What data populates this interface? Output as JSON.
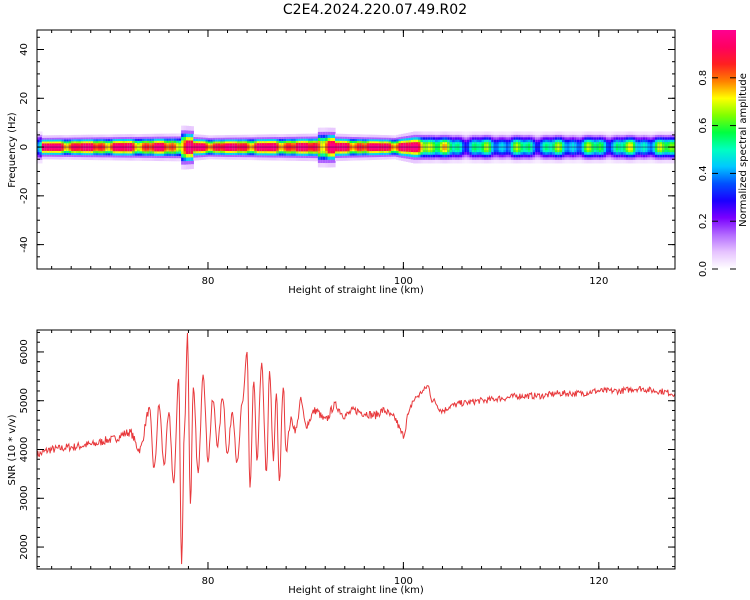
{
  "title": "C2E4.2024.220.07.49.R02",
  "colors": {
    "snr_line": "#e8393c",
    "colormap": [
      "#ffffff",
      "#e6c3ff",
      "#b36bff",
      "#7a00ff",
      "#1a00ff",
      "#0050ff",
      "#00c8ff",
      "#00ffc0",
      "#00ff40",
      "#80ff00",
      "#ffff00",
      "#ff8000",
      "#ff2020",
      "#ff0060",
      "#ff0090"
    ]
  },
  "chart_data": [
    {
      "type": "heatmap",
      "title": "",
      "xlabel": "Height of straight line (km)",
      "ylabel": "Frequency (Hz)",
      "xlim": [
        62.5,
        127.8
      ],
      "ylim": [
        -50,
        48
      ],
      "x_ticks": [
        80,
        100,
        120
      ],
      "y_ticks": [
        40,
        20,
        0,
        -20,
        -40
      ],
      "colorbar": {
        "label": "Normalized spectral amplitude",
        "range": [
          0,
          1
        ],
        "ticks": [
          0.0,
          0.2,
          0.4,
          0.6,
          0.8
        ]
      },
      "band": {
        "description_points": [
          {
            "x": 63,
            "halfwidth_hz": 3,
            "peak": 0.95
          },
          {
            "x": 77.5,
            "halfwidth_hz": 3.5,
            "peak": 0.85
          },
          {
            "x": 80,
            "halfwidth_hz": 3,
            "peak": 0.95
          },
          {
            "x": 92,
            "halfwidth_hz": 3.5,
            "peak": 0.9
          },
          {
            "x": 99,
            "halfwidth_hz": 3,
            "peak": 0.95
          },
          {
            "x": 101,
            "halfwidth_hz": 4,
            "peak": 0.9
          },
          {
            "x": 105,
            "halfwidth_hz": 4,
            "peak": 0.5
          },
          {
            "x": 115,
            "halfwidth_hz": 4,
            "peak": 0.5
          },
          {
            "x": 127.8,
            "halfwidth_hz": 4,
            "peak": 0.55
          }
        ]
      }
    },
    {
      "type": "line",
      "title": "",
      "xlabel": "Height of straight line (km)",
      "ylabel": "SNR (10 * v/v)",
      "xlim": [
        62.5,
        127.8
      ],
      "ylim": [
        1550,
        6450
      ],
      "x_ticks": [
        80,
        100,
        120
      ],
      "y_ticks": [
        2000,
        3000,
        4000,
        5000,
        6000
      ],
      "series": [
        {
          "x": [
            62.5,
            64,
            66,
            68,
            70,
            72,
            73,
            74,
            74.5,
            75,
            75.5,
            76,
            76.5,
            77,
            77.3,
            77.6,
            77.9,
            78.2,
            78.5,
            79,
            79.5,
            80,
            80.5,
            81,
            81.5,
            82,
            82.5,
            83,
            83.5,
            84,
            84.3,
            84.7,
            85,
            85.5,
            86,
            86.3,
            86.7,
            87,
            87.3,
            87.7,
            88,
            88.5,
            89,
            89.5,
            90,
            91,
            92,
            93,
            94,
            95,
            96,
            97,
            98,
            99,
            100,
            100.5,
            101,
            101.5,
            102,
            102.5,
            103,
            104,
            105,
            106,
            108,
            110,
            112,
            114,
            116,
            118,
            120,
            122,
            124,
            126,
            127.8
          ],
          "y": [
            3900,
            4000,
            4050,
            4100,
            4200,
            4350,
            4000,
            4800,
            3600,
            4900,
            3700,
            4700,
            3300,
            5500,
            1650,
            4500,
            6350,
            2900,
            5200,
            3500,
            5600,
            3800,
            5000,
            4100,
            5100,
            3900,
            4800,
            3700,
            4900,
            6000,
            3200,
            5400,
            3800,
            5700,
            3500,
            5600,
            3800,
            5200,
            3300,
            5300,
            4000,
            4600,
            4400,
            5000,
            4500,
            4800,
            4600,
            4900,
            4700,
            4800,
            4750,
            4700,
            4800,
            4650,
            4300,
            4700,
            5000,
            5100,
            5200,
            5300,
            5000,
            4800,
            4900,
            4950,
            5000,
            5050,
            5100,
            5100,
            5150,
            5150,
            5200,
            5200,
            5250,
            5200,
            5150
          ]
        }
      ]
    }
  ]
}
